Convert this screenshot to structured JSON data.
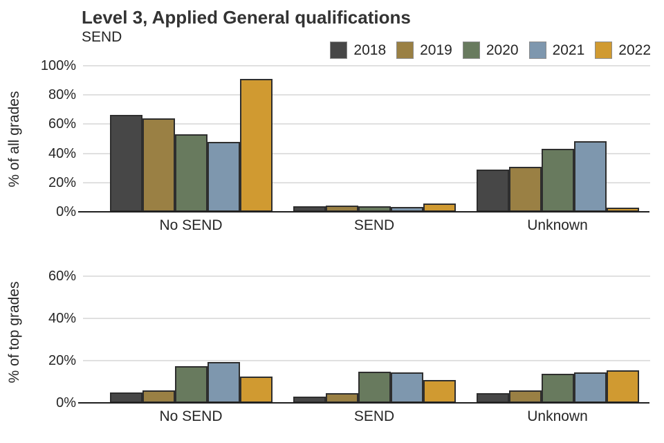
{
  "title": "Level 3, Applied General qualifications",
  "subtitle": "SEND",
  "legend": {
    "position": "top-right",
    "entries": [
      {
        "label": "2018",
        "color": "#474747"
      },
      {
        "label": "2019",
        "color": "#9a8044"
      },
      {
        "label": "2020",
        "color": "#687a5e"
      },
      {
        "label": "2021",
        "color": "#7e97ae"
      },
      {
        "label": "2022",
        "color": "#d09a31"
      }
    ]
  },
  "styles": {
    "bar_border_color": "#2e2e2e",
    "gridline_color": "#e0e0e0",
    "axis_line_color": "#1f1f1f",
    "text_color": "#262626",
    "title_color": "#333333"
  },
  "chart_data": [
    {
      "type": "bar",
      "panel": "top",
      "ylabel": "% of all grades",
      "xlabel": "",
      "categories": [
        "No SEND",
        "SEND",
        "Unknown"
      ],
      "series": [
        {
          "name": "2018",
          "color": "#474747",
          "values": [
            66.5,
            4.0,
            29.0
          ]
        },
        {
          "name": "2019",
          "color": "#9a8044",
          "values": [
            64.0,
            4.5,
            31.0
          ]
        },
        {
          "name": "2020",
          "color": "#687a5e",
          "values": [
            53.0,
            4.0,
            43.0
          ]
        },
        {
          "name": "2021",
          "color": "#7e97ae",
          "values": [
            48.0,
            3.5,
            48.5
          ]
        },
        {
          "name": "2022",
          "color": "#d09a31",
          "values": [
            91.0,
            5.5,
            3.0
          ]
        }
      ],
      "yticks": [
        "0%",
        "20%",
        "40%",
        "60%",
        "80%",
        "100%"
      ],
      "ytick_values": [
        0,
        20,
        40,
        60,
        80,
        100
      ],
      "ylim": [
        0,
        100
      ],
      "grid": true
    },
    {
      "type": "bar",
      "panel": "bottom",
      "ylabel": "% of top grades",
      "xlabel": "",
      "categories": [
        "No SEND",
        "SEND",
        "Unknown"
      ],
      "series": [
        {
          "name": "2018",
          "color": "#474747",
          "values": [
            5.0,
            3.0,
            4.5
          ]
        },
        {
          "name": "2019",
          "color": "#9a8044",
          "values": [
            6.0,
            4.5,
            6.0
          ]
        },
        {
          "name": "2020",
          "color": "#687a5e",
          "values": [
            17.5,
            14.7,
            13.8
          ]
        },
        {
          "name": "2021",
          "color": "#7e97ae",
          "values": [
            19.5,
            14.3,
            14.4
          ]
        },
        {
          "name": "2022",
          "color": "#d09a31",
          "values": [
            12.5,
            11.0,
            15.5
          ]
        }
      ],
      "yticks": [
        "0%",
        "20%",
        "40%",
        "60%"
      ],
      "ytick_values": [
        0,
        20,
        40,
        60
      ],
      "ylim": [
        0,
        67
      ],
      "grid": true
    }
  ]
}
